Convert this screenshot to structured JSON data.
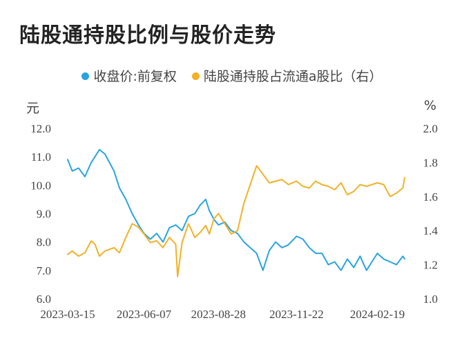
{
  "title": "陆股通持股比例与股价走势",
  "legend": [
    {
      "label": "收盘价:前复权",
      "color": "#29a3e0"
    },
    {
      "label": "陆股通持股占流通a股比（右）",
      "color": "#f0b226"
    }
  ],
  "units": {
    "left": "元",
    "right": "%"
  },
  "chart_data": {
    "type": "line",
    "title": "陆股通持股比例与股价走势",
    "x_tick_labels": [
      "2023-03-15",
      "2023-06-07",
      "2023-08-28",
      "2023-11-22",
      "2024-02-19"
    ],
    "y_left": {
      "label": "元",
      "range": [
        6.0,
        12.0
      ],
      "ticks": [
        "6.0",
        "7.0",
        "8.0",
        "9.0",
        "10.0",
        "11.0",
        "12.0"
      ]
    },
    "y_right": {
      "label": "%",
      "range": [
        1.0,
        2.0
      ],
      "ticks": [
        "1.0",
        "1.2",
        "1.4",
        "1.6",
        "1.8",
        "2.0"
      ]
    },
    "legend_position": "top",
    "grid": false,
    "series": [
      {
        "name": "收盘价:前复权",
        "axis": "left",
        "color": "#29a3e0",
        "x": [
          "2023-03-15",
          "2023-03-20",
          "2023-03-27",
          "2023-04-03",
          "2023-04-10",
          "2023-04-14",
          "2023-04-19",
          "2023-04-25",
          "2023-05-05",
          "2023-05-11",
          "2023-05-18",
          "2023-05-25",
          "2023-06-01",
          "2023-06-07",
          "2023-06-14",
          "2023-06-21",
          "2023-06-28",
          "2023-07-05",
          "2023-07-12",
          "2023-07-19",
          "2023-07-26",
          "2023-08-02",
          "2023-08-08",
          "2023-08-14",
          "2023-08-18",
          "2023-08-23",
          "2023-08-28",
          "2023-09-04",
          "2023-09-11",
          "2023-09-18",
          "2023-09-25",
          "2023-10-09",
          "2023-10-16",
          "2023-10-23",
          "2023-10-30",
          "2023-11-06",
          "2023-11-13",
          "2023-11-22",
          "2023-11-29",
          "2023-12-06",
          "2023-12-13",
          "2023-12-20",
          "2023-12-27",
          "2024-01-03",
          "2024-01-10",
          "2024-01-17",
          "2024-01-24",
          "2024-01-31",
          "2024-02-07",
          "2024-02-19",
          "2024-02-26",
          "2024-03-04",
          "2024-03-11",
          "2024-03-18",
          "2024-03-20"
        ],
        "values": [
          10.9,
          10.5,
          10.6,
          10.3,
          10.8,
          11.0,
          11.25,
          11.1,
          10.5,
          9.9,
          9.5,
          9.0,
          8.6,
          8.3,
          8.1,
          8.3,
          8.0,
          8.5,
          8.6,
          8.4,
          8.9,
          9.0,
          9.3,
          9.5,
          9.1,
          8.8,
          8.6,
          8.7,
          8.4,
          8.3,
          8.0,
          7.6,
          7.0,
          7.7,
          8.0,
          7.8,
          7.9,
          8.2,
          8.1,
          7.8,
          7.6,
          7.6,
          7.2,
          7.3,
          7.0,
          7.4,
          7.1,
          7.5,
          7.0,
          7.6,
          7.4,
          7.3,
          7.2,
          7.5,
          7.4
        ]
      },
      {
        "name": "陆股通持股占流通a股比（右）",
        "axis": "right",
        "color": "#f0b226",
        "x": [
          "2023-03-15",
          "2023-03-20",
          "2023-03-27",
          "2023-04-03",
          "2023-04-10",
          "2023-04-14",
          "2023-04-19",
          "2023-04-25",
          "2023-05-05",
          "2023-05-11",
          "2023-05-18",
          "2023-05-25",
          "2023-06-01",
          "2023-06-07",
          "2023-06-14",
          "2023-06-21",
          "2023-06-28",
          "2023-07-05",
          "2023-07-12",
          "2023-07-14",
          "2023-07-19",
          "2023-07-26",
          "2023-08-02",
          "2023-08-08",
          "2023-08-14",
          "2023-08-18",
          "2023-08-23",
          "2023-08-28",
          "2023-09-04",
          "2023-09-11",
          "2023-09-18",
          "2023-09-25",
          "2023-10-09",
          "2023-10-12",
          "2023-10-16",
          "2023-10-23",
          "2023-10-30",
          "2023-11-06",
          "2023-11-13",
          "2023-11-22",
          "2023-11-29",
          "2023-12-06",
          "2023-12-13",
          "2023-12-20",
          "2023-12-27",
          "2024-01-03",
          "2024-01-10",
          "2024-01-17",
          "2024-01-24",
          "2024-01-31",
          "2024-02-07",
          "2024-02-19",
          "2024-02-26",
          "2024-03-04",
          "2024-03-11",
          "2024-03-18",
          "2024-03-20"
        ],
        "values": [
          1.26,
          1.28,
          1.25,
          1.27,
          1.34,
          1.32,
          1.25,
          1.28,
          1.3,
          1.27,
          1.36,
          1.44,
          1.42,
          1.38,
          1.33,
          1.34,
          1.3,
          1.36,
          1.32,
          1.13,
          1.33,
          1.44,
          1.36,
          1.39,
          1.43,
          1.38,
          1.47,
          1.5,
          1.44,
          1.38,
          1.4,
          1.56,
          1.78,
          1.76,
          1.73,
          1.68,
          1.69,
          1.7,
          1.67,
          1.69,
          1.66,
          1.65,
          1.69,
          1.67,
          1.66,
          1.64,
          1.68,
          1.61,
          1.63,
          1.67,
          1.66,
          1.68,
          1.67,
          1.6,
          1.62,
          1.65,
          1.71
        ]
      }
    ]
  }
}
